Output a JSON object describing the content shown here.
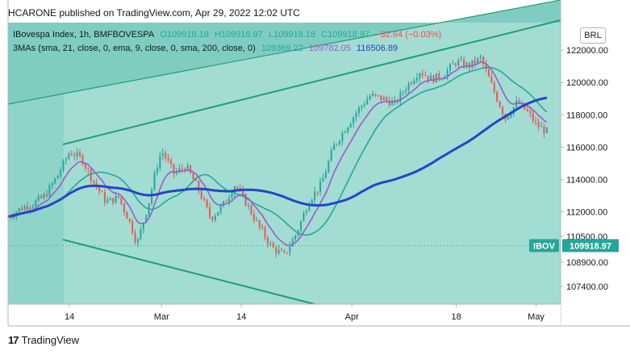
{
  "header": {
    "text": "HCARONE published on TradingView.com, Apr 29, 2022 12:02 UTC"
  },
  "legend": {
    "symbol": "IBovespa Index, 1h, BMFBOVESPA",
    "open": "O109918.18",
    "high": "H109918.97",
    "low": "L109918.18",
    "close": "C109918.97",
    "change": "−32.64 (−0.03%)",
    "ma_label": "3MAs (sma, 21, close, 0, ema, 9, close, 0, sma, 200, close, 0)",
    "ma1_value": "109369.22",
    "ma2_value": "109782.05",
    "ma3_value": "116506.89"
  },
  "currency": "BRL",
  "footer": {
    "logo": "17",
    "brand": "TradingView"
  },
  "colors": {
    "background_channel": "#a3dcd3",
    "channel_dark": "#7fcdc1",
    "channel_line": "#1e9e78",
    "sma21": "#26a69a",
    "ema9": "#9c5bc9",
    "sma200": "#2446c6",
    "up": "#26a69a",
    "down": "#ef5350",
    "price_label": "#26a69a"
  },
  "chart_data": {
    "type": "candlestick",
    "y_axis": {
      "ticks": [
        122000,
        120000,
        118000,
        116000,
        114000,
        112000,
        110500,
        108900,
        107400
      ],
      "tick_labels": [
        "122000.00",
        "120000.00",
        "118000.00",
        "116000.00",
        "114000.00",
        "112000.00",
        "110500.00",
        "108900.00",
        "107400.00"
      ],
      "range": [
        106300,
        123700
      ]
    },
    "x_axis": {
      "tick_labels": [
        "14",
        "Mar",
        "14",
        "Apr",
        "18",
        "May"
      ],
      "tick_dates": [
        "2022-02-14",
        "2022-03-01",
        "2022-03-14",
        "2022-04-01",
        "2022-04-18",
        "2022-05-01"
      ],
      "range": [
        "2022-02-04",
        "2022-05-05"
      ]
    },
    "last_price": {
      "symbol": "IBOV",
      "value": 109918.97,
      "label": "109918.97"
    },
    "price_path": [
      [
        "2022-02-04",
        111700
      ],
      [
        "2022-02-06",
        112200
      ],
      [
        "2022-02-08",
        112500
      ],
      [
        "2022-02-10",
        113000
      ],
      [
        "2022-02-12",
        114200
      ],
      [
        "2022-02-14",
        115700
      ],
      [
        "2022-02-16",
        115300
      ],
      [
        "2022-02-18",
        113800
      ],
      [
        "2022-02-20",
        112600
      ],
      [
        "2022-02-22",
        112900
      ],
      [
        "2022-02-24",
        111200
      ],
      [
        "2022-02-25",
        110000
      ],
      [
        "2022-02-27",
        112700
      ],
      [
        "2022-02-28",
        114500
      ],
      [
        "2022-03-01",
        115800
      ],
      [
        "2022-03-03",
        114400
      ],
      [
        "2022-03-05",
        114800
      ],
      [
        "2022-03-07",
        113400
      ],
      [
        "2022-03-09",
        111600
      ],
      [
        "2022-03-11",
        112400
      ],
      [
        "2022-03-13",
        113700
      ],
      [
        "2022-03-15",
        112400
      ],
      [
        "2022-03-17",
        111000
      ],
      [
        "2022-03-19",
        109800
      ],
      [
        "2022-03-21",
        109300
      ],
      [
        "2022-03-23",
        110700
      ],
      [
        "2022-03-25",
        112700
      ],
      [
        "2022-03-27",
        113700
      ],
      [
        "2022-03-29",
        116000
      ],
      [
        "2022-03-31",
        117200
      ],
      [
        "2022-04-02",
        118300
      ],
      [
        "2022-04-04",
        119200
      ],
      [
        "2022-04-06",
        119000
      ],
      [
        "2022-04-08",
        118700
      ],
      [
        "2022-04-10",
        119800
      ],
      [
        "2022-04-12",
        120700
      ],
      [
        "2022-04-14",
        120200
      ],
      [
        "2022-04-16",
        120500
      ],
      [
        "2022-04-18",
        121300
      ],
      [
        "2022-04-20",
        121000
      ],
      [
        "2022-04-22",
        121500
      ],
      [
        "2022-04-24",
        119600
      ],
      [
        "2022-04-26",
        117800
      ],
      [
        "2022-04-27",
        118300
      ],
      [
        "2022-04-28",
        118800
      ],
      [
        "2022-04-30",
        118000
      ],
      [
        "2022-05-01",
        117400
      ],
      [
        "2022-05-03",
        116900
      ]
    ]
  }
}
